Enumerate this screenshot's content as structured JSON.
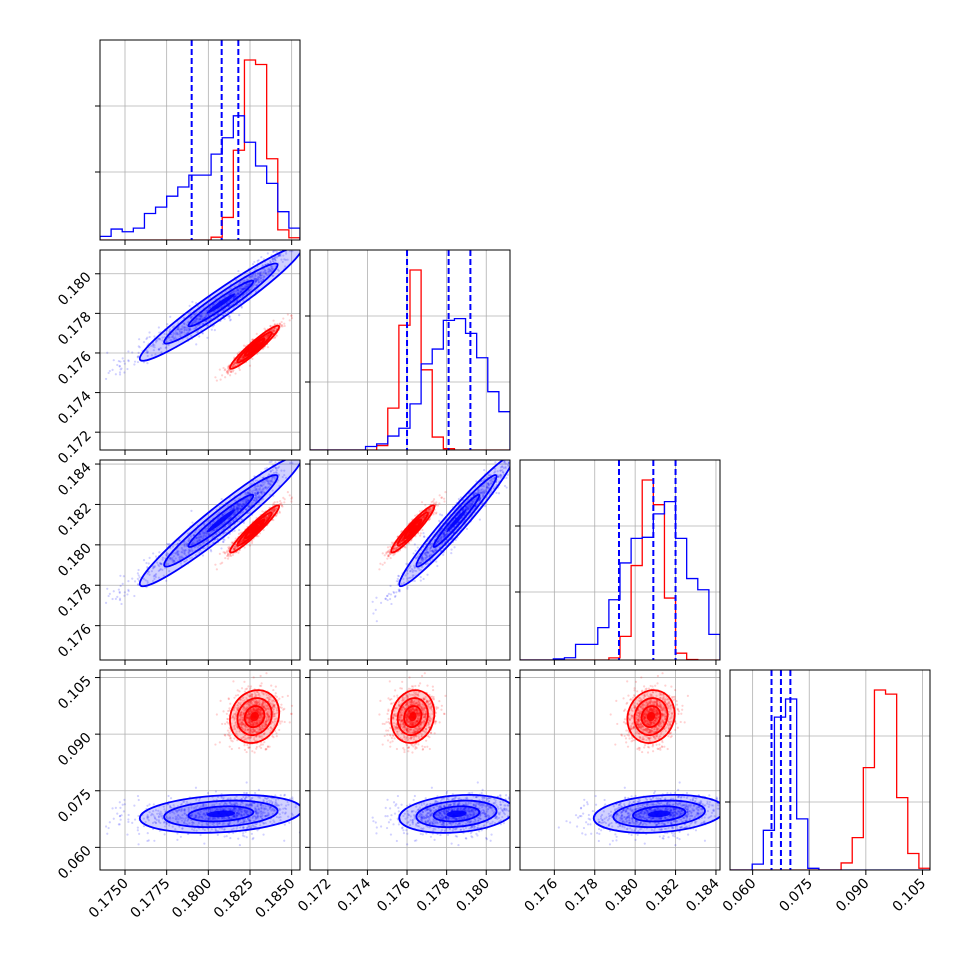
{
  "chart_data": {
    "type": "corner",
    "title": "",
    "parameters": 4,
    "colors": {
      "red": "#ff0000",
      "blue": "#0000ff"
    },
    "grid": true,
    "axes": {
      "p0": {
        "range": [
          0.1735,
          0.1855
        ],
        "ticks": [
          0.175,
          0.1775,
          0.18,
          0.1825,
          0.185
        ],
        "tick_labels": [
          "0.1750",
          "0.1775",
          "0.1800",
          "0.1825",
          "0.1850"
        ]
      },
      "p1": {
        "range": [
          0.1711,
          0.1812
        ],
        "ticks": [
          0.172,
          0.174,
          0.176,
          0.178,
          0.18
        ],
        "tick_labels": [
          "0.172",
          "0.174",
          "0.176",
          "0.178",
          "0.180"
        ]
      },
      "p2": {
        "range": [
          0.1743,
          0.1842
        ],
        "ticks": [
          0.176,
          0.178,
          0.18,
          0.182,
          0.184
        ],
        "tick_labels": [
          "0.176",
          "0.178",
          "0.180",
          "0.182",
          "0.184"
        ]
      },
      "p3": {
        "range": [
          0.054,
          0.107
        ],
        "ticks": [
          0.06,
          0.075,
          0.09,
          0.105
        ],
        "tick_labels": [
          "0.060",
          "0.075",
          "0.090",
          "0.105"
        ]
      }
    },
    "series": [
      {
        "color": "red",
        "mean": [
          0.1828,
          0.1763,
          0.1808,
          0.0947
        ],
        "std": [
          0.00075,
          0.00055,
          0.0006,
          0.0035
        ],
        "hist_peak_rel": [
          1.0,
          1.0,
          1.0,
          1.0
        ]
      },
      {
        "color": "blue",
        "mean": [
          0.1812,
          0.1785,
          0.1812,
          0.0689
        ],
        "std": [
          0.0018,
          0.0014,
          0.0016,
          0.0025
        ],
        "hist_peak_rel": [
          0.69,
          0.73,
          0.88,
          0.95
        ]
      }
    ],
    "quantile_lines": {
      "color": "blue",
      "p0": [
        0.179,
        0.1808,
        0.1818
      ],
      "p1": [
        0.176,
        0.1781,
        0.1792
      ],
      "p2": [
        0.1792,
        0.1809,
        0.182
      ],
      "p3": [
        0.065,
        0.0675,
        0.07
      ]
    },
    "correlations": {
      "red": {
        "p0_p1": 0.95,
        "p0_p2": 0.95,
        "p1_p2": 0.95,
        "p0_p3": 0.1,
        "p1_p3": 0.1,
        "p2_p3": 0.1
      },
      "blue": {
        "p0_p1": 0.97,
        "p0_p2": 0.97,
        "p1_p2": 0.97,
        "p0_p3": 0.2,
        "p1_p3": 0.2,
        "p2_p3": 0.2
      }
    },
    "scatter_points_per_series": 1000
  }
}
